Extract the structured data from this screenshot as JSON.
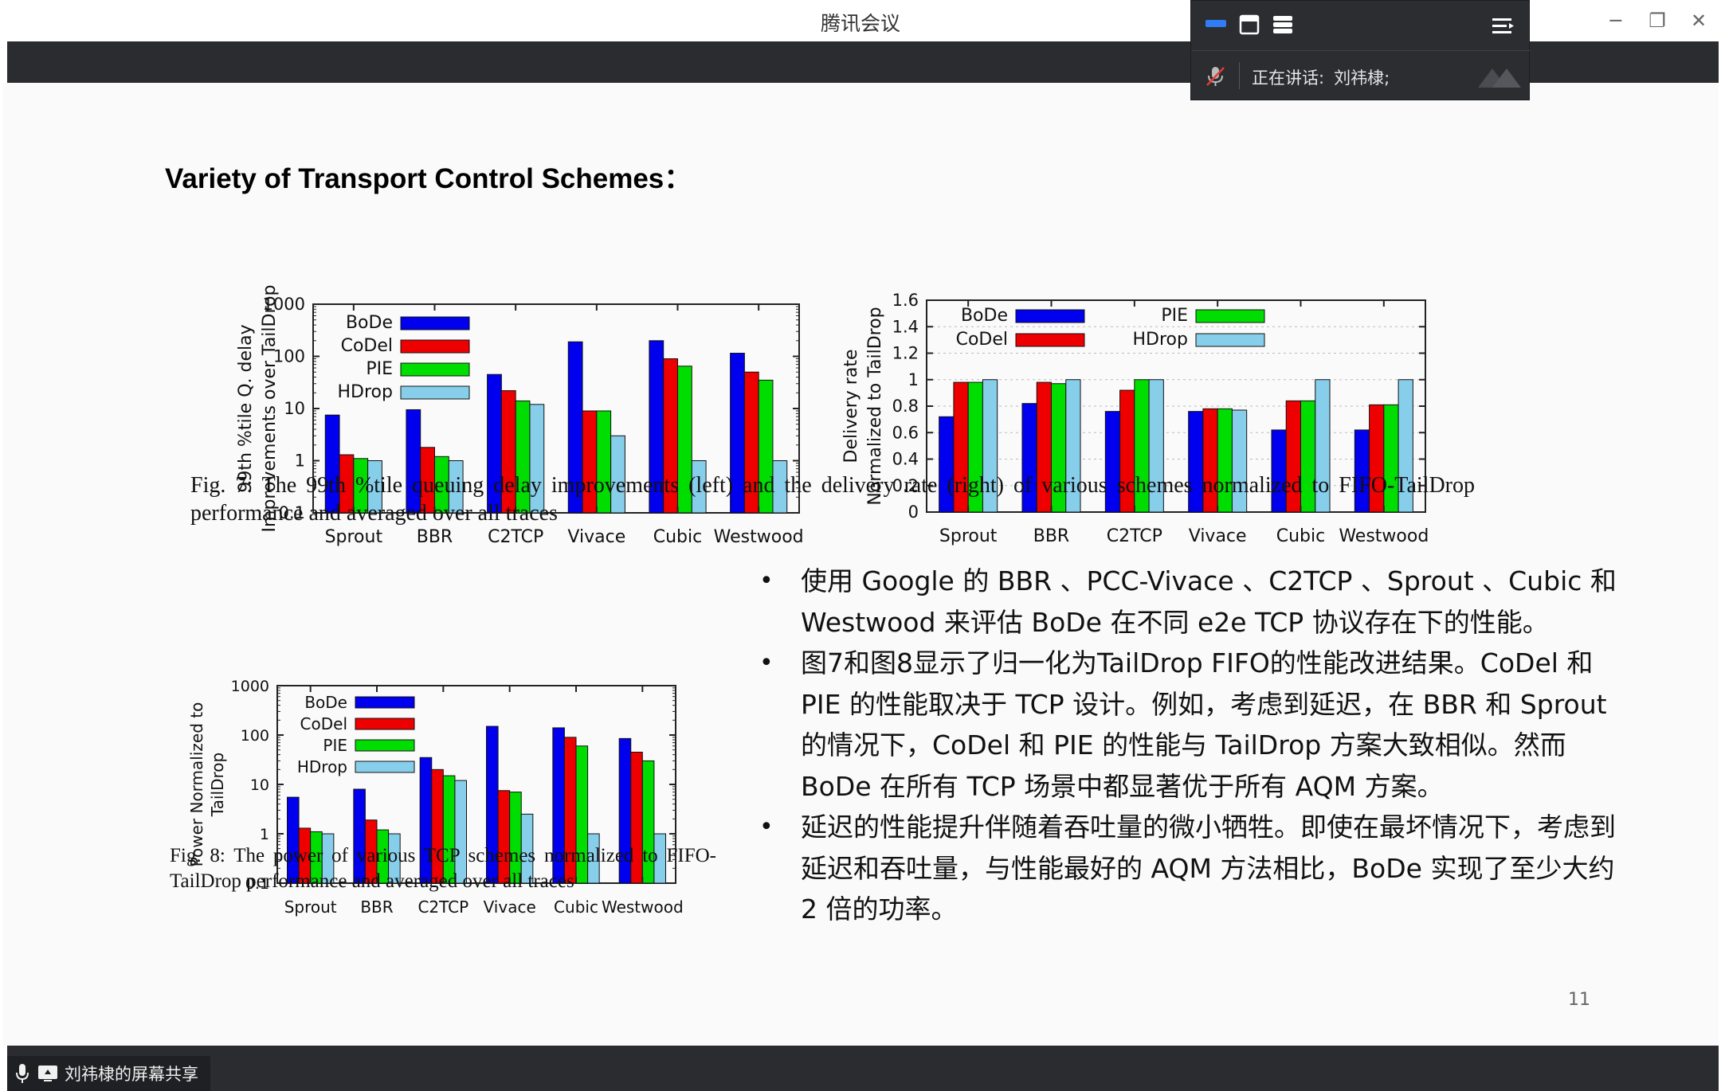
{
  "window": {
    "title": "腾讯会议",
    "minimize_glyph": "─",
    "restore_glyph": "❐",
    "close_glyph": "✕"
  },
  "meeting_panel": {
    "speaking_label": "正在讲话:",
    "speaker_name": "刘祎棣;"
  },
  "share_tag": {
    "label": "刘祎棣的屏幕共享"
  },
  "slide": {
    "title": "Variety of Transport Control Schemes：",
    "fig7_caption": "Fig. 7: The 99th %tile queuing delay improvements (left) and the delivery rate (right) of various schemes normalized to FIFO-TailDrop performance and averaged over all traces",
    "fig8_caption": "Fig. 8: The power of various TCP schemes normalized to FIFO-TailDrop performance and averaged over all traces",
    "bullets": [
      "使用 Google 的 BBR 、PCC-Vivace 、C2TCP 、Sprout 、Cubic 和 Westwood 来评估 BoDe 在不同 e2e TCP 协议存在下的性能。",
      "图7和图8显示了归一化为TailDrop FIFO的性能改进结果。CoDel 和 PIE 的性能取决于 TCP 设计。例如，考虑到延迟，在 BBR 和 Sprout 的情况下，CoDel 和 PIE 的性能与 TailDrop 方案大致相似。然而 BoDe 在所有 TCP 场景中都显著优于所有 AQM 方案。",
      "延迟的性能提升伴随着吞吐量的微小牺牲。即使在最坏情况下，考虑到延迟和吞吐量，与性能最好的 AQM 方法相比，BoDe 实现了至少大约 2 倍的功率。"
    ],
    "page_number": "11"
  },
  "colors": {
    "BoDe": "#0000ee",
    "CoDel": "#ee0000",
    "PIE": "#00dd00",
    "HDrop": "#87ceeb"
  },
  "chart_data": [
    {
      "id": "fig7-left",
      "type": "bar",
      "ylabel_line1": "99th %tile Q. delay",
      "ylabel_line2": "Improvements over TailDrop",
      "yscale": "log",
      "ylim": [
        0.1,
        1000
      ],
      "yticks": [
        "0.1",
        "1",
        "10",
        "100",
        "1000"
      ],
      "categories": [
        "Sprout",
        "BBR",
        "C2TCP",
        "Vivace",
        "Cubic",
        "Westwood"
      ],
      "legend": "top-left",
      "series": [
        {
          "name": "BoDe",
          "values": [
            7.5,
            9.5,
            45,
            190,
            200,
            115
          ]
        },
        {
          "name": "CoDel",
          "values": [
            1.3,
            1.8,
            22,
            9,
            90,
            50
          ]
        },
        {
          "name": "PIE",
          "values": [
            1.1,
            1.2,
            14,
            9,
            65,
            35
          ]
        },
        {
          "name": "HDrop",
          "values": [
            1.0,
            1.0,
            12,
            3,
            1.0,
            1.0
          ]
        }
      ]
    },
    {
      "id": "fig7-right",
      "type": "bar",
      "ylabel_line1": "Delivery rate",
      "ylabel_line2": "Normalized to TailDrop",
      "yscale": "linear",
      "ylim": [
        0,
        1.6
      ],
      "yticks": [
        "0",
        "0.2",
        "0.4",
        "0.6",
        "0.8",
        "1",
        "1.2",
        "1.4",
        "1.6"
      ],
      "categories": [
        "Sprout",
        "BBR",
        "C2TCP",
        "Vivace",
        "Cubic",
        "Westwood"
      ],
      "legend": "top",
      "series": [
        {
          "name": "BoDe",
          "values": [
            0.72,
            0.82,
            0.76,
            0.76,
            0.62,
            0.62
          ]
        },
        {
          "name": "CoDel",
          "values": [
            0.98,
            0.98,
            0.92,
            0.78,
            0.84,
            0.81
          ]
        },
        {
          "name": "PIE",
          "values": [
            0.98,
            0.97,
            1.0,
            0.78,
            0.84,
            0.81
          ]
        },
        {
          "name": "HDrop",
          "values": [
            1.0,
            1.0,
            1.0,
            0.77,
            1.0,
            1.0
          ]
        }
      ]
    },
    {
      "id": "fig8",
      "type": "bar",
      "ylabel_line1": "Power Normalized to",
      "ylabel_line2": "TailDrop",
      "yscale": "log",
      "ylim": [
        0.1,
        1000
      ],
      "yticks": [
        "0.1",
        "1",
        "10",
        "100",
        "1000"
      ],
      "categories": [
        "Sprout",
        "BBR",
        "C2TCP",
        "Vivace",
        "Cubic",
        "Westwood"
      ],
      "legend": "top-left",
      "series": [
        {
          "name": "BoDe",
          "values": [
            5.5,
            8,
            35,
            150,
            140,
            85
          ]
        },
        {
          "name": "CoDel",
          "values": [
            1.3,
            1.9,
            20,
            7.5,
            90,
            45
          ]
        },
        {
          "name": "PIE",
          "values": [
            1.1,
            1.2,
            15,
            7,
            60,
            30
          ]
        },
        {
          "name": "HDrop",
          "values": [
            1.0,
            1.0,
            12,
            2.5,
            1.0,
            1.0
          ]
        }
      ]
    }
  ]
}
